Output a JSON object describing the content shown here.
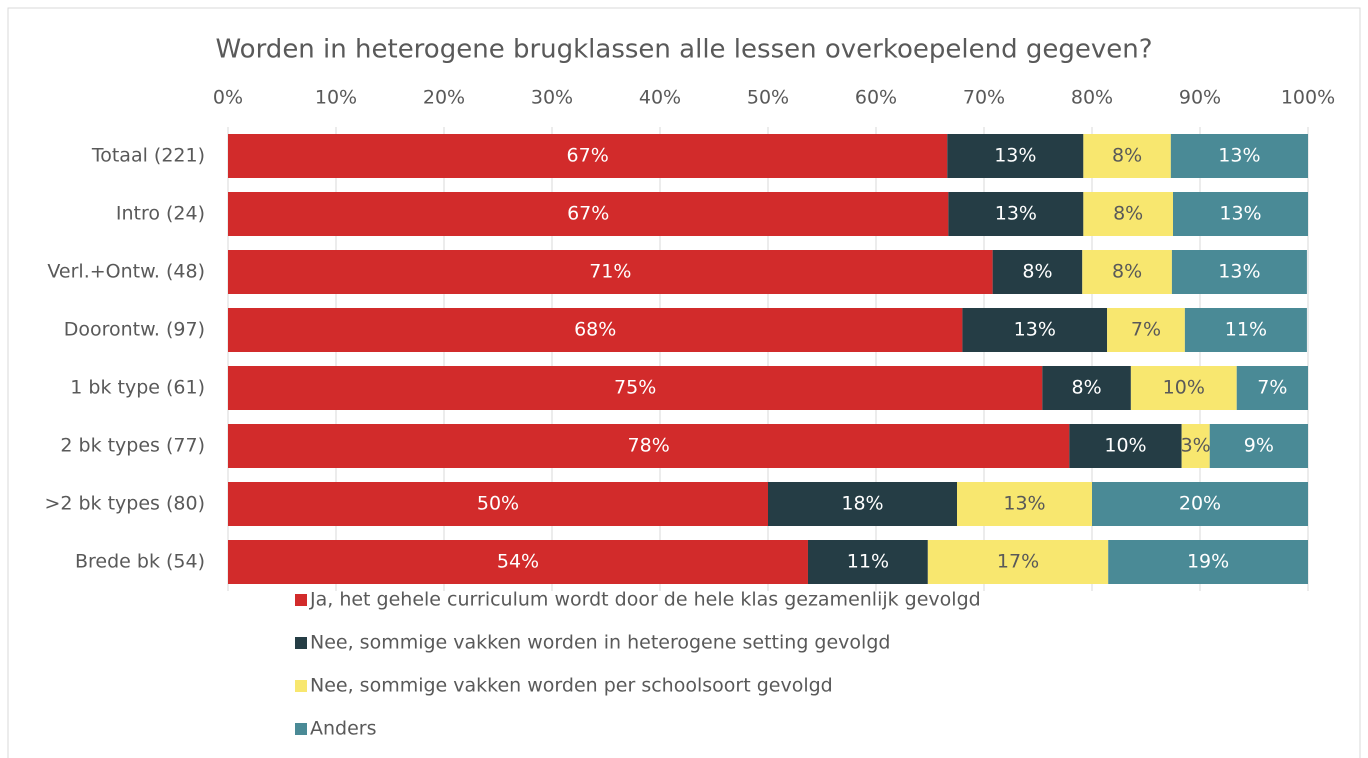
{
  "chart_data": {
    "type": "stacked-barh",
    "title": "Worden in heterogene brugklassen alle lessen overkoepelend gegeven?",
    "categories": [
      "Totaal (221)",
      "Intro (24)",
      "Verl.+Ontw. (48)",
      "Doorontw. (97)",
      "1 bk type (61)",
      "2 bk types (77)",
      ">2 bk types (80)",
      "Brede bk (54)"
    ],
    "series": [
      {
        "name": "Ja, het gehele curriculum wordt door de hele klas gezamenlijk gevolgd",
        "color": "#d22b2b",
        "values": [
          66.6,
          66.7,
          70.8,
          68.0,
          75.4,
          77.9,
          50,
          53.7
        ],
        "value_labels": [
          "67%",
          "67%",
          "71%",
          "68%",
          "75%",
          "78%",
          "50%",
          "54%"
        ]
      },
      {
        "name": "Nee, sommige vakken worden in heterogene setting gevolgd",
        "color": "#253d45",
        "values": [
          12.6,
          12.5,
          8.3,
          13.4,
          8.2,
          10.4,
          17.5,
          11.1
        ],
        "value_labels": [
          "13%",
          "13%",
          "8%",
          "13%",
          "8%",
          "10%",
          "18%",
          "11%"
        ]
      },
      {
        "name": "Nee, sommige vakken worden per schoolsoort gevolgd",
        "color": "#f8e76f",
        "values": [
          8.1,
          8.3,
          8.3,
          7.2,
          9.8,
          2.6,
          12.5,
          16.7
        ],
        "value_labels": [
          "8%",
          "8%",
          "8%",
          "7%",
          "10%",
          "3%",
          "13%",
          "17%"
        ]
      },
      {
        "name": "Anders",
        "color": "#4a8a96",
        "values": [
          12.7,
          12.5,
          12.5,
          11.3,
          6.6,
          9.1,
          20,
          18.5
        ],
        "value_labels": [
          "13%",
          "13%",
          "13%",
          "11%",
          "7%",
          "9%",
          "20%",
          "19%"
        ]
      }
    ],
    "xlim": [
      0,
      100
    ],
    "xticks": [
      {
        "value": 0,
        "label": "0%"
      },
      {
        "value": 10,
        "label": "10%"
      },
      {
        "value": 20,
        "label": "20%"
      },
      {
        "value": 30,
        "label": "30%"
      },
      {
        "value": 40,
        "label": "40%"
      },
      {
        "value": 50,
        "label": "50%"
      },
      {
        "value": 60,
        "label": "60%"
      },
      {
        "value": 70,
        "label": "70%"
      },
      {
        "value": 80,
        "label": "80%"
      },
      {
        "value": 90,
        "label": "90%"
      },
      {
        "value": 100,
        "label": "100%"
      }
    ],
    "grid": true,
    "legend": "bottom"
  }
}
